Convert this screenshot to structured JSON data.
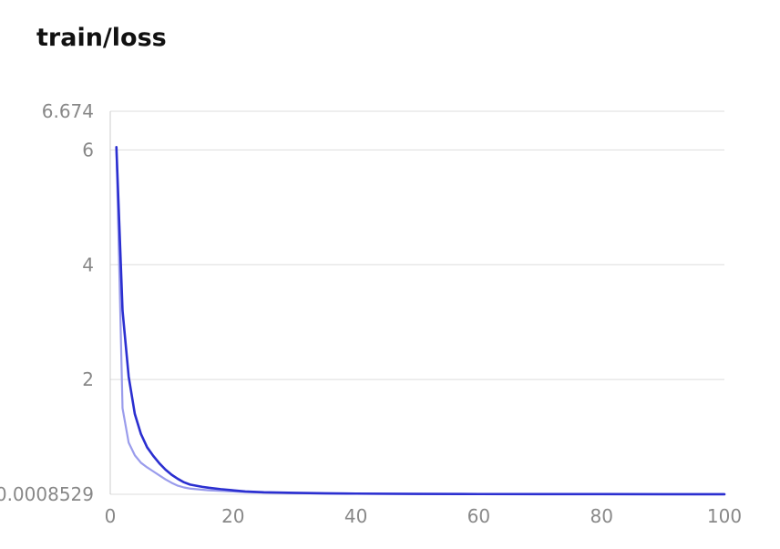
{
  "chart_data": {
    "type": "line",
    "title": "train/loss",
    "xlabel": "",
    "ylabel": "",
    "xlim": [
      0,
      100
    ],
    "ylim": [
      0.0008529,
      6.674
    ],
    "grid": true,
    "x_ticks": [
      "0",
      "20",
      "40",
      "60",
      "80",
      "100"
    ],
    "y_ticks": [
      "0.0008529",
      "2",
      "4",
      "6",
      "6.674"
    ],
    "colors": {
      "smoothed": "#2b2fd0",
      "raw": "#9a9cec",
      "grid": "#dddddd",
      "tick_text": "#888888"
    },
    "series": [
      {
        "role": "raw",
        "x": [
          1,
          2,
          3,
          4,
          5,
          6,
          7,
          8,
          9,
          10,
          11,
          12,
          13,
          14,
          15,
          16,
          18,
          20,
          22,
          25,
          30,
          35,
          40,
          50,
          60,
          70,
          80,
          90,
          100
        ],
        "y": [
          6.05,
          1.5,
          0.9,
          0.68,
          0.55,
          0.47,
          0.4,
          0.33,
          0.26,
          0.2,
          0.15,
          0.12,
          0.1,
          0.09,
          0.08,
          0.07,
          0.06,
          0.05,
          0.04,
          0.03,
          0.02,
          0.015,
          0.01,
          0.006,
          0.004,
          0.003,
          0.002,
          0.0015,
          0.001
        ]
      },
      {
        "role": "smoothed",
        "x": [
          1,
          2,
          3,
          4,
          5,
          6,
          7,
          8,
          9,
          10,
          11,
          12,
          13,
          14,
          15,
          16,
          18,
          20,
          22,
          25,
          30,
          35,
          40,
          50,
          60,
          70,
          80,
          90,
          100
        ],
        "y": [
          6.05,
          3.2,
          2.05,
          1.4,
          1.05,
          0.82,
          0.67,
          0.54,
          0.43,
          0.34,
          0.27,
          0.21,
          0.17,
          0.15,
          0.13,
          0.115,
          0.09,
          0.07,
          0.05,
          0.035,
          0.025,
          0.018,
          0.013,
          0.008,
          0.005,
          0.004,
          0.003,
          0.002,
          0.0015
        ]
      }
    ]
  }
}
